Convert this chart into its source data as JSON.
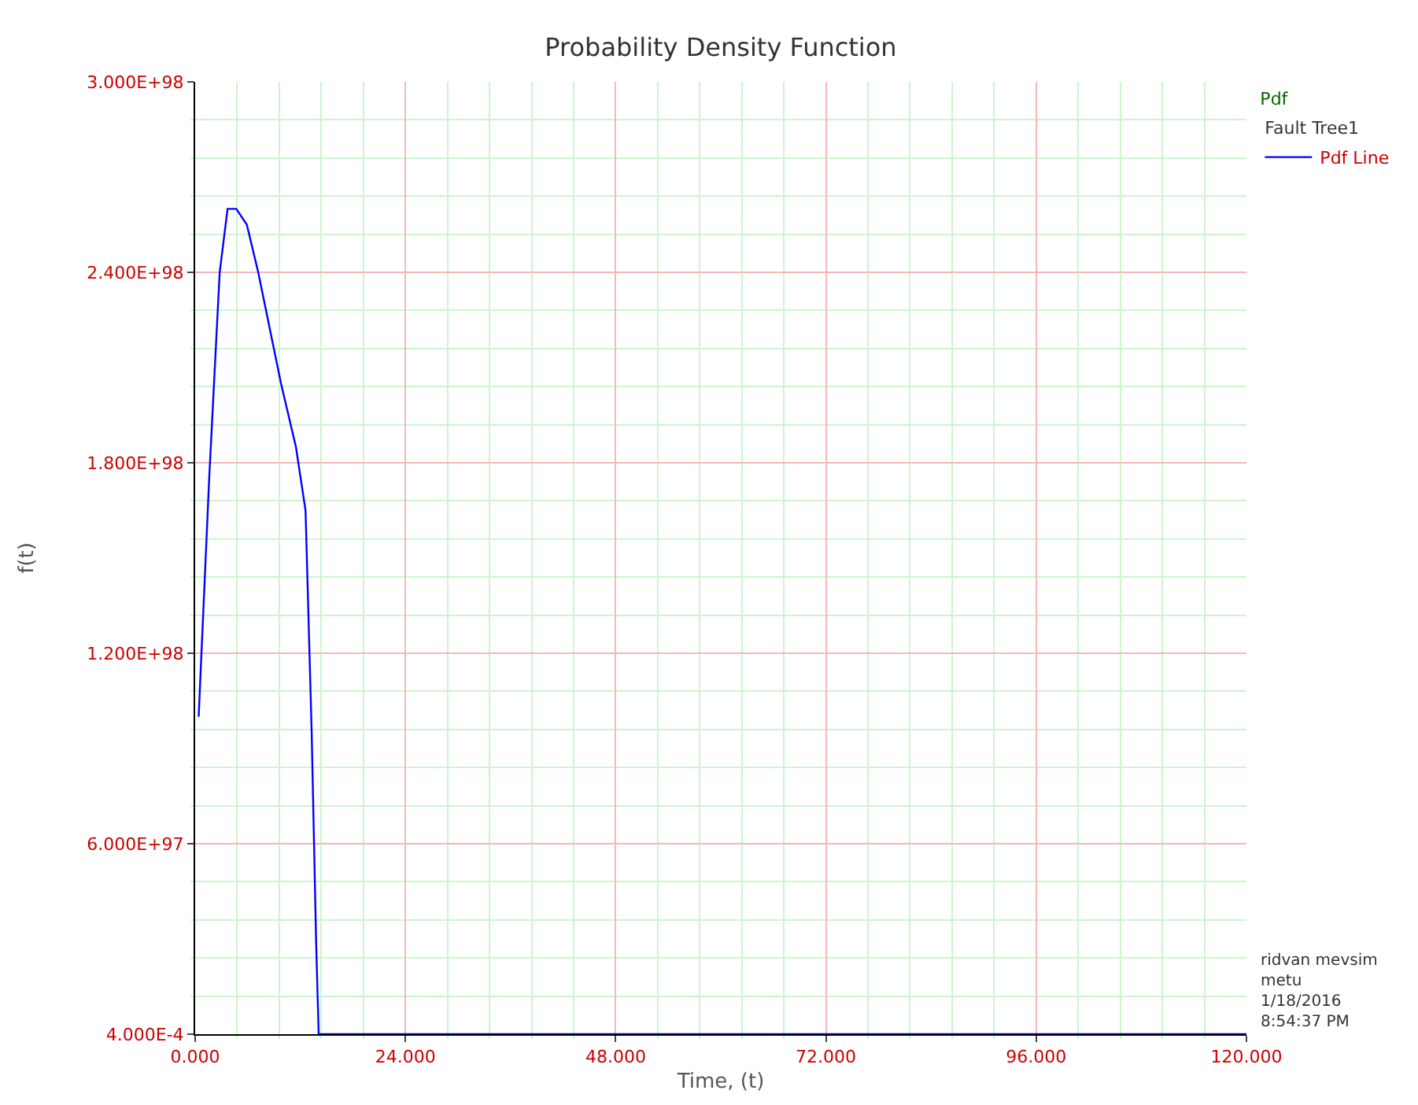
{
  "chart_data": {
    "type": "line",
    "title": "Probability Density Function",
    "xlabel": "Time, (t)",
    "ylabel": "f(t)",
    "legend_title": "Pdf",
    "annotations": [
      "Fault Tree1",
      "ridvan mevsim\nmetu\n1/18/2016\n8:54:37 PM"
    ],
    "x": [
      0.4,
      1.6,
      2.8,
      3.7,
      4.7,
      5.9,
      7.2,
      9.8,
      11.5,
      12.6,
      13.3,
      13.8,
      14.1,
      120
    ],
    "series": [
      {
        "name": "Pdf Line",
        "color": "#0000ff",
        "values": [
          1e+98,
          1.75e+98,
          2.4e+98,
          2.6e+98,
          2.6e+98,
          2.55e+98,
          2.4e+98,
          2.05e+98,
          1.85e+98,
          1.65e+98,
          9.5e+97,
          3e+97,
          0.0004,
          0.0004
        ]
      }
    ],
    "xlim": [
      0,
      120
    ],
    "xticks": [
      {
        "value": 0,
        "label": "0.000"
      },
      {
        "value": 4.8,
        "label": null
      },
      {
        "value": 9.6,
        "label": null
      },
      {
        "value": 14.4,
        "label": null
      },
      {
        "value": 19.2,
        "label": null
      },
      {
        "value": 24,
        "label": "24.000"
      },
      {
        "value": 28.8,
        "label": null
      },
      {
        "value": 33.6,
        "label": null
      },
      {
        "value": 38.4,
        "label": null
      },
      {
        "value": 43.2,
        "label": null
      },
      {
        "value": 48,
        "label": "48.000"
      },
      {
        "value": 52.8,
        "label": null
      },
      {
        "value": 57.6,
        "label": null
      },
      {
        "value": 62.4,
        "label": null
      },
      {
        "value": 67.2,
        "label": null
      },
      {
        "value": 72,
        "label": "72.000"
      },
      {
        "value": 76.8,
        "label": null
      },
      {
        "value": 81.6,
        "label": null
      },
      {
        "value": 86.4,
        "label": null
      },
      {
        "value": 91.2,
        "label": null
      },
      {
        "value": 96,
        "label": "96.000"
      },
      {
        "value": 100.8,
        "label": null
      },
      {
        "value": 105.6,
        "label": null
      },
      {
        "value": 110.4,
        "label": null
      },
      {
        "value": 115.2,
        "label": null
      },
      {
        "value": 120,
        "label": "120.000"
      }
    ],
    "ylim": [
      0.0004,
      3e+98
    ],
    "yticks": [
      {
        "value": 0.0004,
        "label": "4.000E-4"
      },
      {
        "value": 1.2e+97,
        "label": null
      },
      {
        "value": 2.4e+97,
        "label": null
      },
      {
        "value": 3.6e+97,
        "label": null
      },
      {
        "value": 4.8e+97,
        "label": null
      },
      {
        "value": 6e+97,
        "label": "6.000E+97"
      },
      {
        "value": 7.2e+97,
        "label": null
      },
      {
        "value": 8.4e+97,
        "label": null
      },
      {
        "value": 9.6e+97,
        "label": null
      },
      {
        "value": 1.08e+98,
        "label": null
      },
      {
        "value": 1.2e+98,
        "label": "1.200E+98"
      },
      {
        "value": 1.32e+98,
        "label": null
      },
      {
        "value": 1.44e+98,
        "label": null
      },
      {
        "value": 1.56e+98,
        "label": null
      },
      {
        "value": 1.68e+98,
        "label": null
      },
      {
        "value": 1.8e+98,
        "label": "1.800E+98"
      },
      {
        "value": 1.92e+98,
        "label": null
      },
      {
        "value": 2.04e+98,
        "label": null
      },
      {
        "value": 2.16e+98,
        "label": null
      },
      {
        "value": 2.28e+98,
        "label": null
      },
      {
        "value": 2.4e+98,
        "label": "2.400E+98"
      },
      {
        "value": 2.52e+98,
        "label": null
      },
      {
        "value": 2.64e+98,
        "label": null
      },
      {
        "value": 2.76e+98,
        "label": null
      },
      {
        "value": 2.88e+98,
        "label": null
      },
      {
        "value": 3e+98,
        "label": "3.000E+98"
      }
    ],
    "grid": true,
    "legend": "top right",
    "marker": "none",
    "line_style": "solid"
  }
}
